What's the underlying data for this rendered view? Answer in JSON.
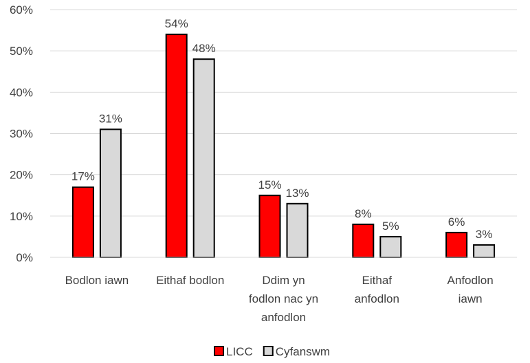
{
  "chart_data": {
    "type": "bar",
    "categories": [
      [
        "Bodlon iawn"
      ],
      [
        "Eithaf bodlon"
      ],
      [
        "Ddim yn",
        "fodlon nac yn",
        "anfodlon"
      ],
      [
        "Eithaf",
        "anfodlon"
      ],
      [
        "Anfodlon",
        "iawn"
      ]
    ],
    "series": [
      {
        "name": "LICC",
        "values": [
          17,
          54,
          15,
          8,
          6
        ],
        "color": "#ff0000"
      },
      {
        "name": "Cyfanswm",
        "values": [
          31,
          48,
          13,
          5,
          3
        ],
        "color": "#d9d9d9"
      }
    ],
    "ylim": [
      0,
      60
    ],
    "yticks": [
      0,
      10,
      20,
      30,
      40,
      50,
      60
    ],
    "ytick_labels": [
      "0%",
      "10%",
      "20%",
      "30%",
      "40%",
      "50%",
      "60%"
    ],
    "value_suffix": "%",
    "grid": true,
    "legend_position": "bottom",
    "xlabel": "",
    "ylabel": "",
    "title": ""
  }
}
